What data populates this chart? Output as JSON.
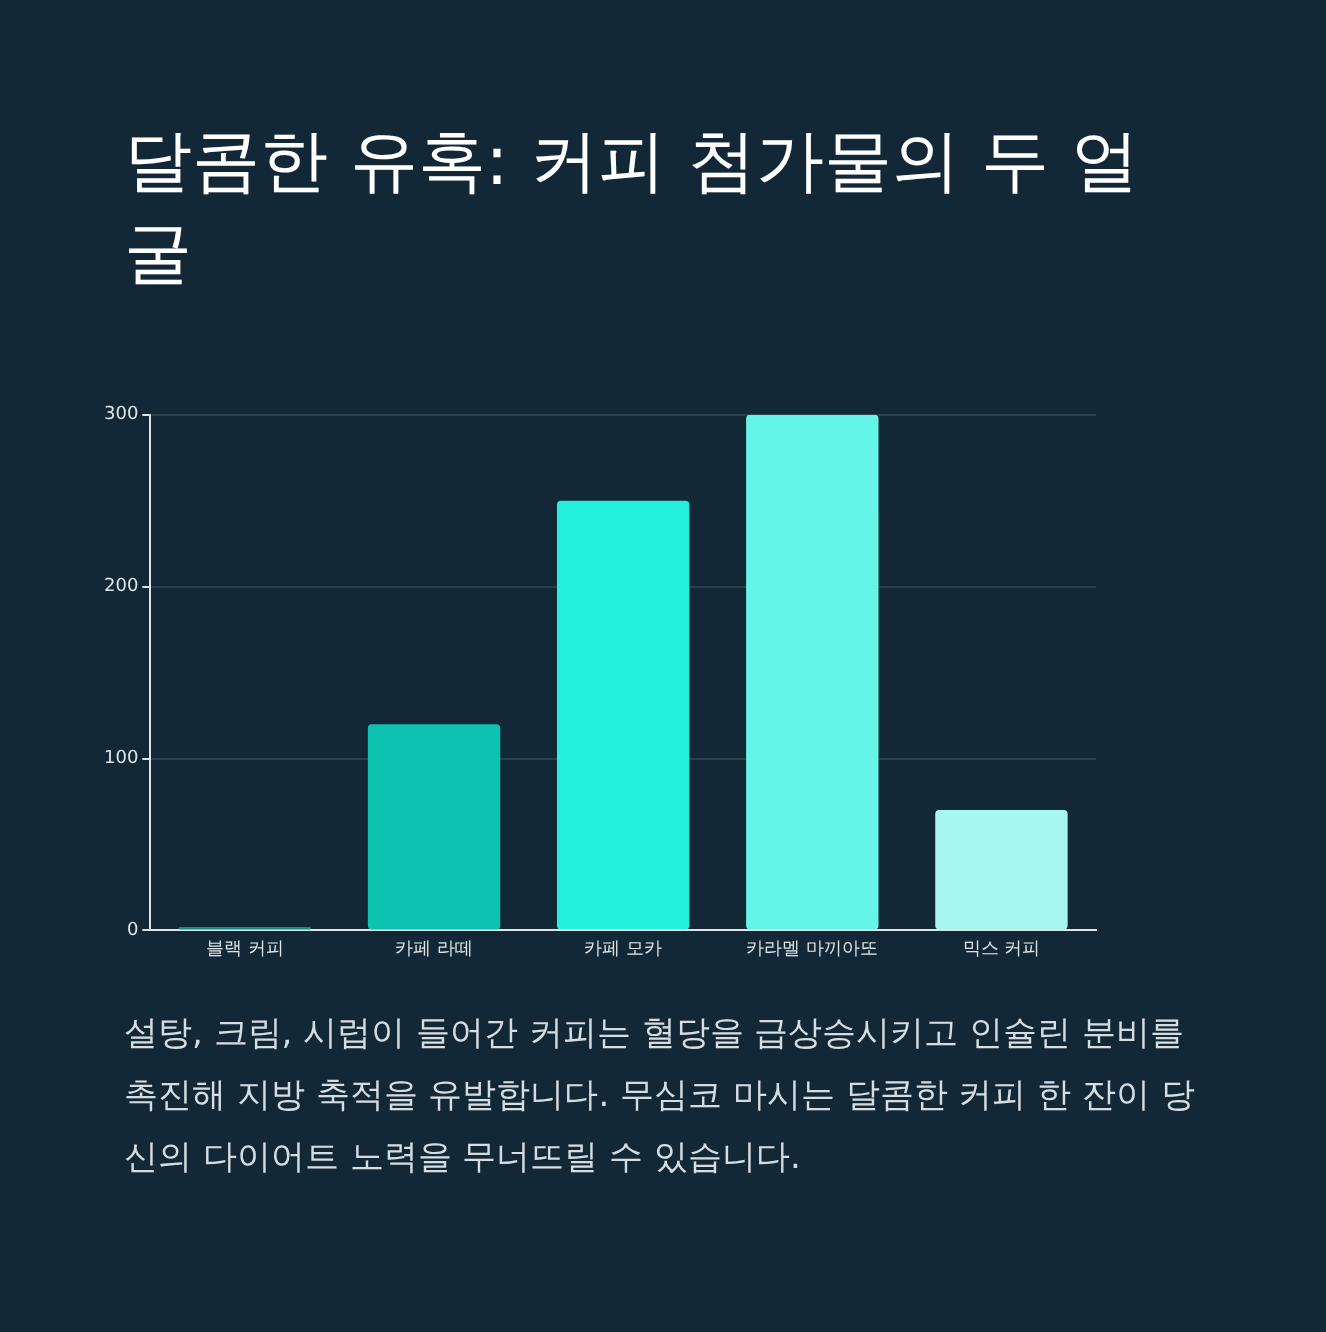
{
  "chart_data": {
    "type": "bar",
    "title": "달콤한 유혹: 커피 첨가물의 두 얼굴",
    "categories": [
      "블랙 커피",
      "카페 라떼",
      "카페 모카",
      "카라멜 마끼아또",
      "믹스 커피"
    ],
    "values": [
      2,
      120,
      250,
      300,
      70
    ],
    "colors": [
      "#0f8f86",
      "#0ec2b1",
      "#22f0dc",
      "#62f5e8",
      "#a8f8f2"
    ],
    "ylim": [
      0,
      300
    ],
    "yticks": [
      0,
      100,
      200,
      300
    ],
    "grid": "y",
    "annotations": [
      "설탕, 크림, 시럽이 들어간 커피는 혈당을 급상승시키고 인슐린 분비를 촉진해 지방 축적을 유발합니다. 무심코 마시는 달콤한 커피 한 잔이 당신의 다이어트 노력을 무너뜨릴 수 있습니다."
    ]
  }
}
